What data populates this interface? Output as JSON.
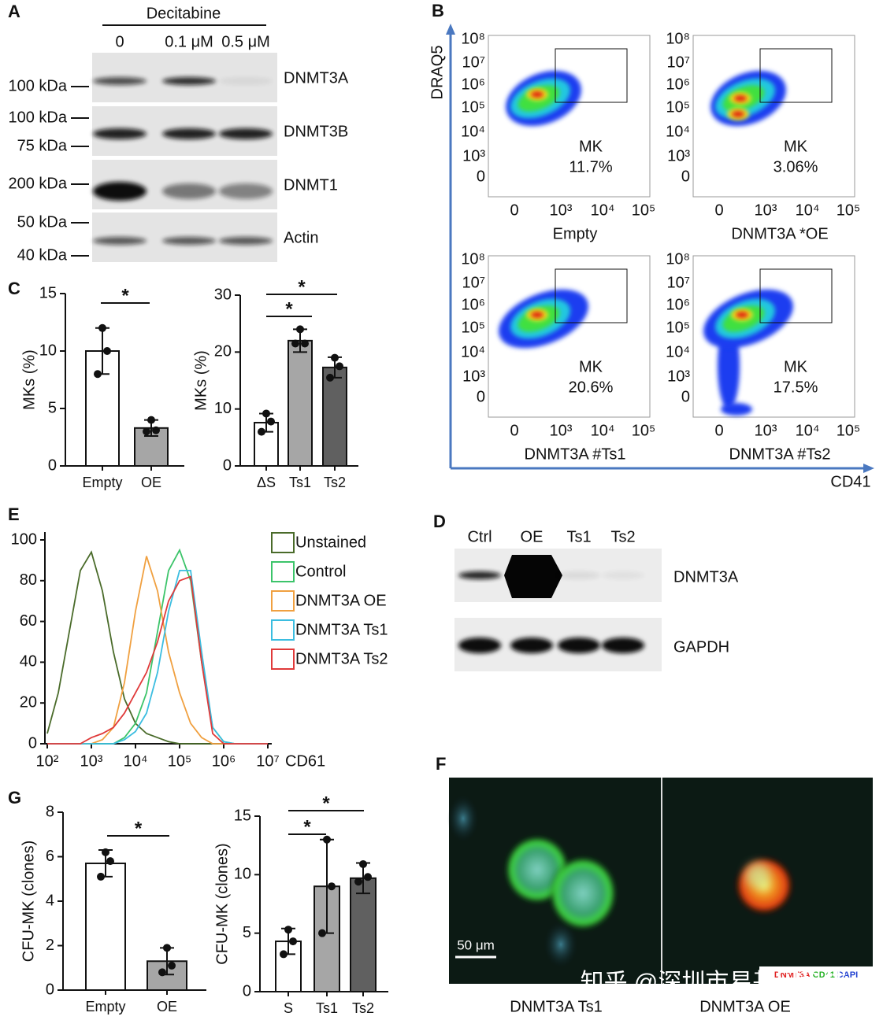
{
  "panel_labels": [
    "A",
    "B",
    "C",
    "D",
    "E",
    "F",
    "G"
  ],
  "panel_a": {
    "treatment": "Decitabine",
    "lanes": [
      "0",
      "0.1 μM",
      "0.5 μM"
    ],
    "blots": [
      {
        "name": "DNMT3A",
        "markers": [
          "100 kDa"
        ]
      },
      {
        "name": "DNMT3B",
        "markers": [
          "100 kDa",
          "75 kDa"
        ]
      },
      {
        "name": "DNMT1",
        "markers": [
          "200 kDa"
        ]
      },
      {
        "name": "Actin",
        "markers": [
          "50 kDa",
          "40 kDa"
        ]
      }
    ]
  },
  "panel_b": {
    "y_axis": "DRAQ5",
    "x_axis": "CD41",
    "y_ticks": [
      "10⁸",
      "10⁷",
      "10⁶",
      "10⁵",
      "10⁴",
      "10³",
      "0"
    ],
    "x_ticks": [
      "0",
      "10³",
      "10⁴",
      "10⁵"
    ],
    "plots": [
      {
        "gate": "MK",
        "percent": "11.7%",
        "label": "Empty"
      },
      {
        "gate": "MK",
        "percent": "3.06%",
        "label": "DNMT3A *OE"
      },
      {
        "gate": "MK",
        "percent": "20.6%",
        "label": "DNMT3A #Ts1"
      },
      {
        "gate": "MK",
        "percent": "17.5%",
        "label": "DNMT3A #Ts2"
      }
    ]
  },
  "panel_d": {
    "lanes": [
      "Ctrl",
      "OE",
      "Ts1",
      "Ts2"
    ],
    "blots": [
      "DNMT3A",
      "GAPDH"
    ]
  },
  "panel_f": {
    "images": [
      "DNMT3A Ts1",
      "DNMT3A OE"
    ],
    "scale_bar": "50 μm",
    "stains": [
      "DNMT3A",
      "CD41",
      "DAPI"
    ],
    "watermark": "知乎 @深圳市易基因科技"
  },
  "chart_data": [
    {
      "type": "bar",
      "ylabel": "MKs (%)",
      "categories": [
        "Empty",
        "OE"
      ],
      "values": [
        10,
        3.3
      ],
      "errors": [
        2,
        0.7
      ],
      "points": [
        [
          12,
          10,
          8
        ],
        [
          4,
          3.1,
          3
        ]
      ],
      "colors": [
        "#ffffff",
        "#a6a6a6"
      ],
      "ylim": [
        0,
        15
      ],
      "yticks": [
        0,
        5,
        10,
        15
      ],
      "annotations": [
        "*"
      ]
    },
    {
      "type": "bar",
      "ylabel": "MKs (%)",
      "categories": [
        "ΔS",
        "Ts1",
        "Ts2"
      ],
      "values": [
        7.6,
        22,
        17.3
      ],
      "errors": [
        1.6,
        2,
        1.8
      ],
      "points": [
        [
          9.2,
          7.8,
          6
        ],
        [
          24,
          21.5,
          21.5
        ],
        [
          19,
          17.5,
          15.5
        ]
      ],
      "colors": [
        "#ffffff",
        "#a6a6a6",
        "#606060"
      ],
      "ylim": [
        0,
        30
      ],
      "yticks": [
        0,
        10,
        20,
        30
      ],
      "annotations": [
        "*",
        "*"
      ]
    },
    {
      "type": "bar",
      "ylabel": "CFU-MK (clones)",
      "categories": [
        "Empty",
        "OE"
      ],
      "values": [
        5.7,
        1.3
      ],
      "errors": [
        0.6,
        0.6
      ],
      "points": [
        [
          6.2,
          5.8,
          5.1
        ],
        [
          1.9,
          1.1,
          0.8
        ]
      ],
      "colors": [
        "#ffffff",
        "#a6a6a6"
      ],
      "ylim": [
        0,
        8
      ],
      "yticks": [
        0,
        2,
        4,
        6,
        8
      ],
      "annotations": [
        "*"
      ]
    },
    {
      "type": "bar",
      "ylabel": "CFU-MK (clones)",
      "categories": [
        "S",
        "Ts1",
        "Ts2"
      ],
      "values": [
        4.3,
        9,
        9.7
      ],
      "errors": [
        1.1,
        4,
        1.3
      ],
      "points": [
        [
          5.3,
          4.3,
          3.2
        ],
        [
          13,
          9,
          5
        ],
        [
          10.9,
          9.8,
          9.4
        ]
      ],
      "colors": [
        "#ffffff",
        "#a6a6a6",
        "#606060"
      ],
      "ylim": [
        0,
        15
      ],
      "yticks": [
        0,
        5,
        10,
        15
      ],
      "annotations": [
        "*",
        "*"
      ]
    },
    {
      "type": "line",
      "xlabel": "CD61",
      "log_x": true,
      "x": [
        100,
        178,
        316,
        562,
        1000,
        1778,
        3162,
        5623,
        10000,
        17783,
        31623,
        56234,
        100000,
        177828,
        316228,
        562341,
        1000000,
        1778279,
        3162278,
        5623413,
        10000000
      ],
      "series": [
        {
          "name": "Unstained",
          "color": "#4a6b2a",
          "values": [
            5,
            25,
            55,
            85,
            94,
            75,
            45,
            22,
            10,
            5,
            3,
            1,
            0,
            0,
            0,
            0,
            0,
            0,
            0,
            0,
            0
          ]
        },
        {
          "name": "Control",
          "color": "#3cc46a",
          "values": [
            0,
            0,
            0,
            0,
            0,
            0,
            0,
            3,
            10,
            25,
            55,
            85,
            95,
            80,
            40,
            8,
            1,
            0,
            0,
            0,
            0
          ]
        },
        {
          "name": "DNMT3A OE",
          "color": "#f0a040",
          "values": [
            0,
            0,
            0,
            0,
            0,
            2,
            8,
            30,
            65,
            92,
            75,
            45,
            25,
            10,
            3,
            0,
            0,
            0,
            0,
            0,
            0
          ]
        },
        {
          "name": "DNMT3A Ts1",
          "color": "#3bbde0",
          "values": [
            0,
            0,
            0,
            0,
            0,
            0,
            0,
            2,
            6,
            15,
            35,
            65,
            85,
            85,
            45,
            8,
            1,
            0,
            0,
            0,
            0
          ]
        },
        {
          "name": "DNMT3A Ts2",
          "color": "#e03a3a",
          "values": [
            0,
            0,
            0,
            0,
            3,
            5,
            8,
            15,
            25,
            35,
            50,
            70,
            80,
            82,
            40,
            5,
            0,
            0,
            0,
            0,
            0
          ]
        }
      ],
      "xlim": [
        100,
        10000000
      ],
      "xticks": [
        {
          "value": 100,
          "label": "10²"
        },
        {
          "value": 1000,
          "label": "10³"
        },
        {
          "value": 10000,
          "label": "10⁴"
        },
        {
          "value": 100000,
          "label": "10⁵"
        },
        {
          "value": 1000000,
          "label": "10⁶"
        },
        {
          "value": 10000000,
          "label": "10⁷"
        }
      ],
      "ylim": [
        0,
        100
      ],
      "yticks": [
        0,
        20,
        40,
        60,
        80,
        100
      ]
    }
  ]
}
